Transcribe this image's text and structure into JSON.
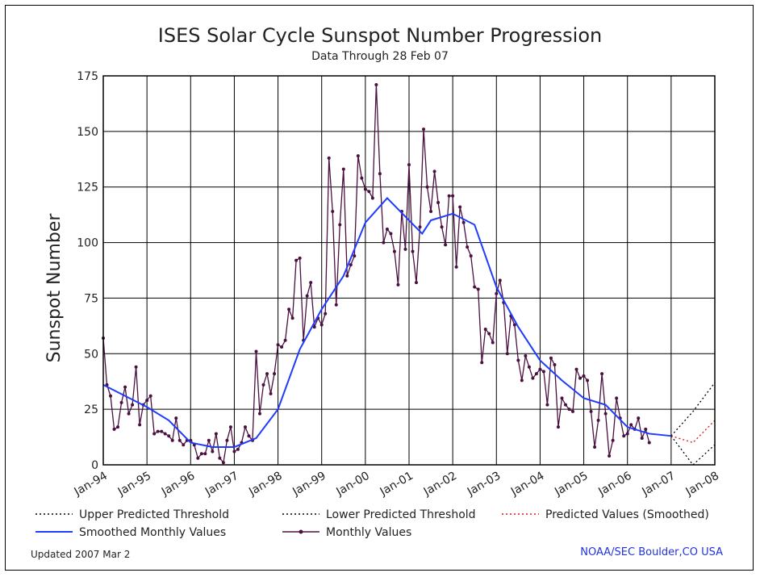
{
  "chart_data": {
    "type": "line",
    "title": "ISES Solar Cycle Sunspot Number Progression",
    "subtitle": "Data Through 28 Feb 07",
    "ylabel": "Sunspot Number",
    "xlabel": "",
    "ylim": [
      0,
      175
    ],
    "yticks": [
      0,
      25,
      50,
      75,
      100,
      125,
      150,
      175
    ],
    "xlim": [
      1994.0,
      2008.0
    ],
    "xticks": [
      {
        "x": 1994,
        "label": "Jan-94"
      },
      {
        "x": 1995,
        "label": "Jan-95"
      },
      {
        "x": 1996,
        "label": "Jan-96"
      },
      {
        "x": 1997,
        "label": "Jan-97"
      },
      {
        "x": 1998,
        "label": "Jan-98"
      },
      {
        "x": 1999,
        "label": "Jan-99"
      },
      {
        "x": 2000,
        "label": "Jan-00"
      },
      {
        "x": 2001,
        "label": "Jan-01"
      },
      {
        "x": 2002,
        "label": "Jan-02"
      },
      {
        "x": 2003,
        "label": "Jan-03"
      },
      {
        "x": 2004,
        "label": "Jan-04"
      },
      {
        "x": 2005,
        "label": "Jan-05"
      },
      {
        "x": 2006,
        "label": "Jan-06"
      },
      {
        "x": 2007,
        "label": "Jan-07"
      },
      {
        "x": 2008,
        "label": "Jan-08"
      }
    ],
    "grid": true,
    "legend_position": "bottom",
    "series": [
      {
        "name": "Monthly Values",
        "color": "#4a1040",
        "style": "line-markers",
        "start": 1994.0,
        "step": 0.08333,
        "values": [
          57,
          36,
          31,
          16,
          17,
          28,
          35,
          23,
          27,
          44,
          18,
          27,
          29,
          31,
          14,
          15,
          15,
          14,
          13,
          11,
          21,
          11,
          9,
          11,
          11,
          9,
          3,
          5,
          5,
          11,
          6,
          14,
          3,
          1,
          11,
          17,
          6,
          7,
          10,
          17,
          13,
          11,
          51,
          23,
          36,
          41,
          32,
          41,
          54,
          53,
          56,
          70,
          66,
          92,
          93,
          56,
          76,
          82,
          62,
          66,
          63,
          68,
          138,
          114,
          72,
          108,
          133,
          85,
          90,
          94,
          139,
          129,
          124,
          123,
          120,
          171,
          131,
          100,
          106,
          104,
          96,
          81,
          114,
          97,
          135,
          96,
          82,
          107,
          151,
          125,
          114,
          132,
          118,
          107,
          99,
          121,
          121,
          89,
          116,
          109,
          98,
          94,
          80,
          79,
          46,
          61,
          59,
          55,
          77,
          83,
          73,
          50,
          67,
          63,
          47,
          38,
          49,
          44,
          39,
          41,
          43,
          42,
          27,
          48,
          45,
          17,
          30,
          27,
          25,
          24,
          43,
          39,
          40,
          38,
          24,
          8,
          20,
          41,
          23,
          4,
          11,
          30,
          21,
          13,
          14,
          18,
          16,
          21,
          12,
          16,
          10
        ]
      },
      {
        "name": "Smoothed Monthly Values",
        "color": "#1e3cff",
        "style": "line",
        "points": [
          [
            1994.0,
            36
          ],
          [
            1994.5,
            31
          ],
          [
            1995.0,
            26
          ],
          [
            1995.5,
            20
          ],
          [
            1996.0,
            10
          ],
          [
            1996.5,
            8
          ],
          [
            1997.0,
            8
          ],
          [
            1997.5,
            12
          ],
          [
            1998.0,
            25
          ],
          [
            1998.5,
            52
          ],
          [
            1999.0,
            70
          ],
          [
            1999.5,
            85
          ],
          [
            2000.0,
            109
          ],
          [
            2000.5,
            120
          ],
          [
            2001.0,
            110
          ],
          [
            2001.3,
            104
          ],
          [
            2001.5,
            110
          ],
          [
            2002.0,
            113
          ],
          [
            2002.5,
            108
          ],
          [
            2003.0,
            80
          ],
          [
            2003.5,
            62
          ],
          [
            2004.0,
            47
          ],
          [
            2004.5,
            38
          ],
          [
            2005.0,
            30
          ],
          [
            2005.5,
            27
          ],
          [
            2006.0,
            17
          ],
          [
            2006.5,
            14
          ],
          [
            2007.0,
            13
          ]
        ]
      },
      {
        "name": "Upper Predicted Threshold",
        "color": "#000000",
        "style": "dotted",
        "points": [
          [
            2007.0,
            13
          ],
          [
            2007.5,
            24
          ],
          [
            2008.0,
            37
          ]
        ]
      },
      {
        "name": "Lower Predicted Threshold",
        "color": "#000000",
        "style": "dotted",
        "points": [
          [
            2007.0,
            13
          ],
          [
            2007.5,
            0
          ],
          [
            2008.0,
            9
          ]
        ]
      },
      {
        "name": "Predicted Values (Smoothed)",
        "color": "#e01515",
        "style": "dotted",
        "points": [
          [
            2007.0,
            13
          ],
          [
            2007.5,
            10
          ],
          [
            2008.0,
            20
          ]
        ]
      }
    ],
    "legend": [
      {
        "label": "Upper Predicted Threshold",
        "color": "#000000",
        "style": "dotted"
      },
      {
        "label": "Lower Predicted Threshold",
        "color": "#000000",
        "style": "dotted"
      },
      {
        "label": "Predicted Values (Smoothed)",
        "color": "#e01515",
        "style": "dotted"
      },
      {
        "label": "Smoothed Monthly Values",
        "color": "#1e3cff",
        "style": "line"
      },
      {
        "label": "Monthly Values",
        "color": "#4a1040",
        "style": "line-markers"
      }
    ]
  },
  "footer": {
    "updated": "Updated 2007 Mar  2",
    "source": "NOAA/SEC Boulder,CO USA"
  }
}
